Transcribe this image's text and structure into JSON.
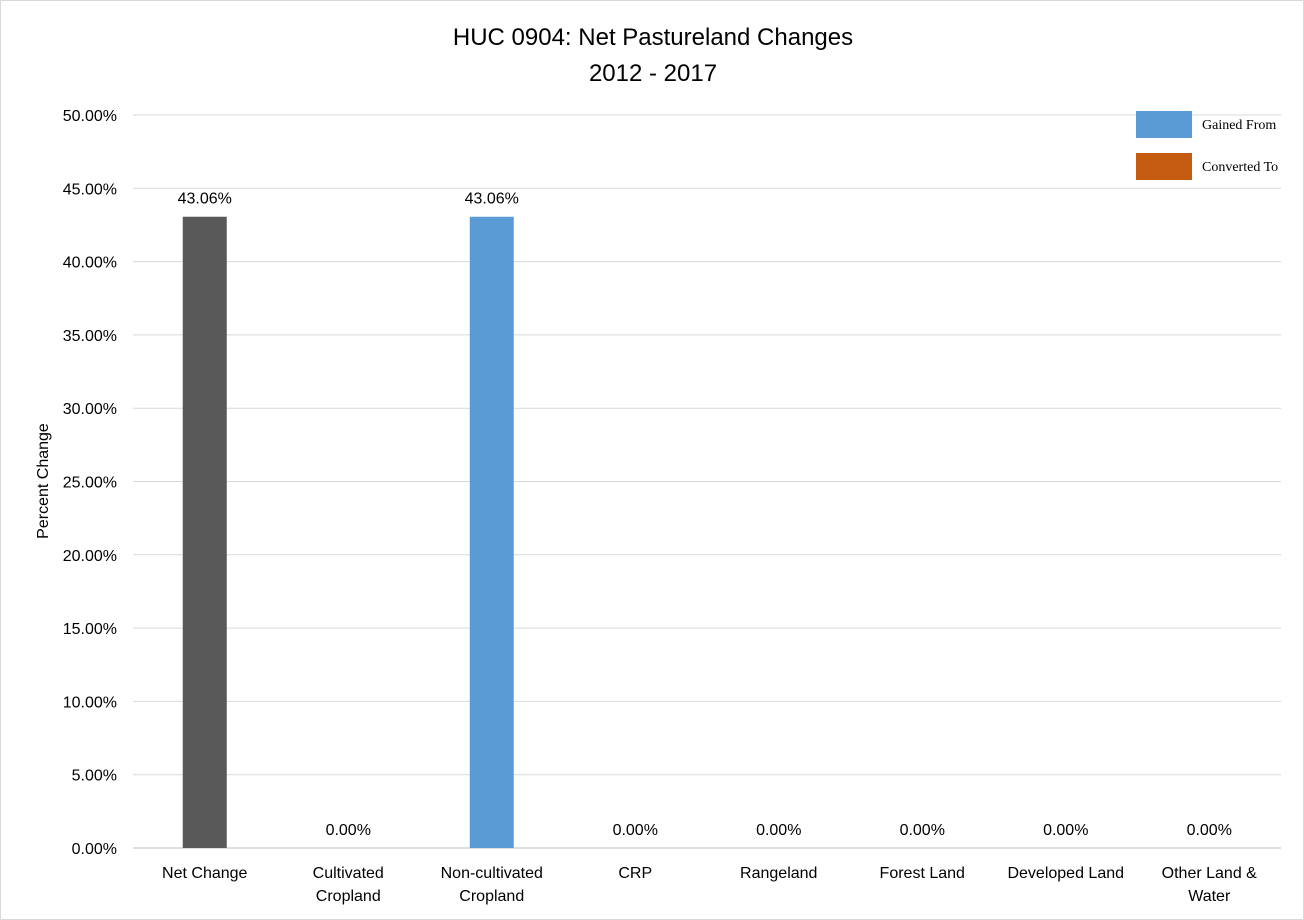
{
  "chart_data": {
    "type": "bar",
    "title": "HUC 0904: Net Pastureland Changes",
    "subtitle": "2012 - 2017",
    "xlabel": "",
    "ylabel": "Percent Change",
    "ylim": [
      0,
      50
    ],
    "ytick_step": 5,
    "ytick_labels": [
      "0.00%",
      "5.00%",
      "10.00%",
      "15.00%",
      "20.00%",
      "25.00%",
      "30.00%",
      "35.00%",
      "40.00%",
      "45.00%",
      "50.00%"
    ],
    "grid": true,
    "legend_position": "top-right",
    "categories": [
      [
        "Net Change"
      ],
      [
        "Cultivated",
        "Cropland"
      ],
      [
        "Non-cultivated",
        "Cropland"
      ],
      [
        "CRP"
      ],
      [
        "Rangeland"
      ],
      [
        "Forest Land"
      ],
      [
        "Developed Land"
      ],
      [
        "Other Land &",
        "Water"
      ]
    ],
    "values": [
      43.06,
      0,
      43.06,
      0,
      0,
      0,
      0,
      0
    ],
    "data_labels": [
      "43.06%",
      "0.00%",
      "43.06%",
      "0.00%",
      "0.00%",
      "0.00%",
      "0.00%",
      "0.00%"
    ],
    "bar_kinds": [
      "net",
      "gained",
      "gained",
      "gained",
      "gained",
      "gained",
      "gained",
      "gained"
    ],
    "legend": [
      {
        "name": "Gained From",
        "color": "#5b9bd5"
      },
      {
        "name": "Converted To",
        "color": "#c55a11"
      }
    ],
    "colors": {
      "net": "#595959",
      "gained": "#5b9bd5",
      "converted": "#c55a11",
      "grid": "#d9d9d9",
      "axis": "#bfbfbf"
    }
  }
}
